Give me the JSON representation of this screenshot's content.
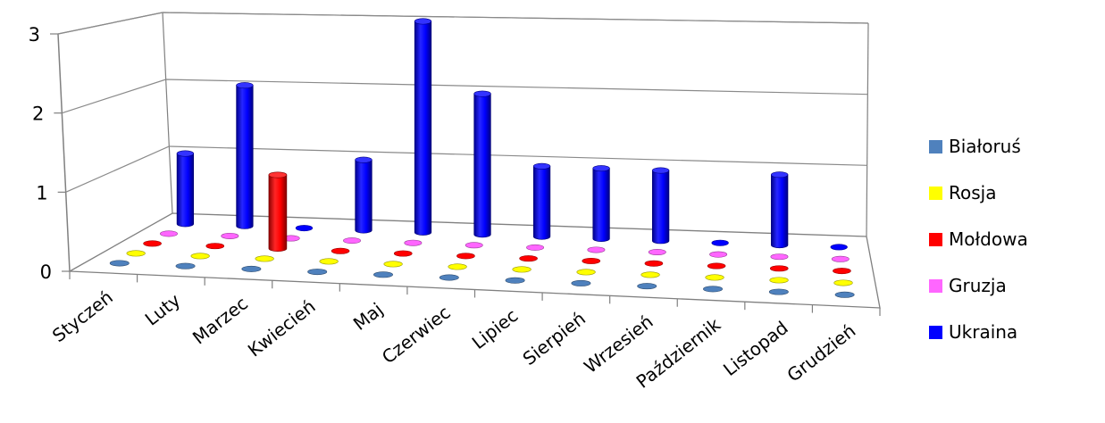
{
  "chart_data": {
    "type": "bar",
    "categories": [
      "Styczeń",
      "Luty",
      "Marzec",
      "Kwiecień",
      "Maj",
      "Czerwiec",
      "Lipiec",
      "Sierpień",
      "Wrzesień",
      "Październik",
      "Listopad",
      "Grudzień"
    ],
    "series": [
      {
        "name": "Białoruś",
        "color": "#4F81BD",
        "values": [
          0,
          0,
          0,
          0,
          0,
          0,
          0,
          0,
          0,
          0,
          0,
          0
        ]
      },
      {
        "name": "Rosja",
        "color": "#FFFF00",
        "values": [
          0,
          0,
          0,
          0,
          0,
          0,
          0,
          0,
          0,
          0,
          0,
          0
        ]
      },
      {
        "name": "Mołdowa",
        "color": "#FF0000",
        "values": [
          0,
          0,
          1,
          0,
          0,
          0,
          0,
          0,
          0,
          0,
          0,
          0
        ]
      },
      {
        "name": "Gruzja",
        "color": "#FF66FF",
        "values": [
          0,
          0,
          0,
          0,
          0,
          0,
          0,
          0,
          0,
          0,
          0,
          0
        ]
      },
      {
        "name": "Ukraina",
        "color": "#0000FF",
        "values": [
          1,
          2,
          0,
          1,
          3,
          2,
          1,
          1,
          1,
          0,
          1,
          0
        ]
      }
    ],
    "yticks": [
      "0",
      "1",
      "2",
      "3"
    ],
    "ylim": [
      0,
      3
    ],
    "grid": true,
    "legend_position": "right",
    "style": "3d-cylinder"
  }
}
